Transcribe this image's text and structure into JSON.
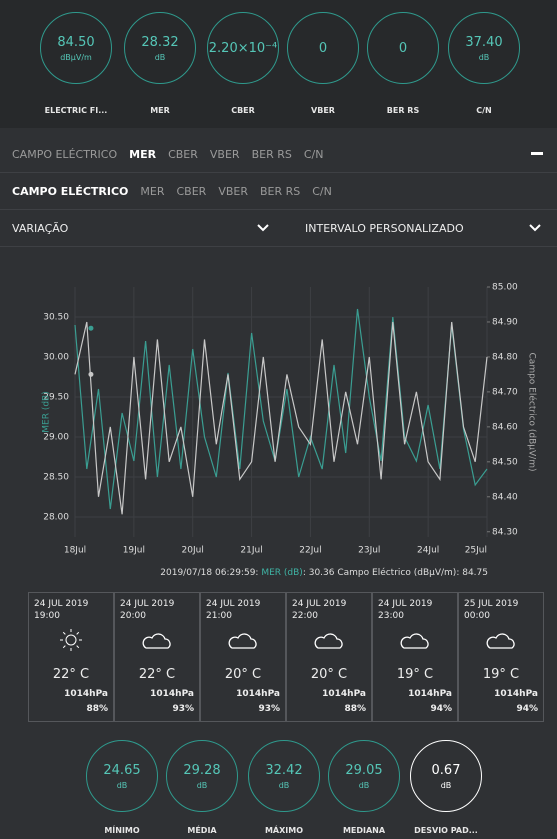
{
  "gauges": [
    {
      "value": "84.50",
      "unit": "dBµV/m",
      "label": "ELECTRIC FI..."
    },
    {
      "value": "28.32",
      "unit": "dB",
      "label": "MER"
    },
    {
      "value": "2.20×10⁻⁴",
      "label": "CBER"
    },
    {
      "value": "0",
      "label": "VBER"
    },
    {
      "value": "0",
      "label": "BER RS"
    },
    {
      "value": "37.40",
      "unit": "dB",
      "label": "C/N"
    }
  ],
  "tabs1": {
    "items": [
      "CAMPO ELÉCTRICO",
      "MER",
      "CBER",
      "VBER",
      "BER RS",
      "C/N"
    ],
    "active": 1
  },
  "tabs2": {
    "items": [
      "CAMPO ELÉCTRICO",
      "MER",
      "CBER",
      "VBER",
      "BER RS",
      "C/N"
    ],
    "active": 0
  },
  "dropdowns": [
    "VARIAÇÃO",
    "INTERVALO PERSONALIZADO"
  ],
  "chart_data": {
    "type": "line",
    "ylabel": "MER (dB)",
    "y2label": "Campo Eléctrico (dBµV/m)",
    "x": [
      18.0,
      18.2,
      18.4,
      18.6,
      18.8,
      19.0,
      19.2,
      19.4,
      19.6,
      19.8,
      20.0,
      20.2,
      20.4,
      20.6,
      20.8,
      21.0,
      21.2,
      21.4,
      21.6,
      21.8,
      22.0,
      22.2,
      22.4,
      22.6,
      22.8,
      23.0,
      23.2,
      23.4,
      23.6,
      23.8,
      24.0,
      24.2,
      24.4,
      24.6,
      24.8,
      25.0
    ],
    "series": [
      {
        "name": "MER (dB)",
        "color": "#3a9e92",
        "values": [
          30.4,
          28.6,
          29.6,
          28.1,
          29.3,
          28.7,
          30.2,
          28.5,
          29.9,
          28.6,
          30.1,
          29.0,
          28.5,
          29.8,
          28.6,
          30.3,
          29.2,
          28.7,
          29.6,
          28.5,
          29.0,
          28.6,
          29.9,
          28.8,
          30.6,
          29.5,
          28.7,
          30.5,
          29.0,
          28.7,
          29.4,
          28.6,
          30.4,
          29.1,
          28.4,
          28.6
        ]
      },
      {
        "name": "Campo Eléctrico (dBµV/m)",
        "color": "#c8c8c8",
        "axis": "y2",
        "values": [
          84.75,
          84.9,
          84.4,
          84.6,
          84.35,
          84.8,
          84.45,
          84.85,
          84.5,
          84.6,
          84.4,
          84.85,
          84.55,
          84.75,
          84.45,
          84.5,
          84.8,
          84.5,
          84.75,
          84.6,
          84.55,
          84.85,
          84.5,
          84.7,
          84.55,
          84.8,
          84.45,
          84.9,
          84.55,
          84.7,
          84.5,
          84.45,
          84.9,
          84.6,
          84.5,
          84.8
        ]
      }
    ],
    "xlim": [
      18,
      25
    ],
    "xticks": [
      {
        "value": 18,
        "label": "18Jul"
      },
      {
        "value": 19,
        "label": "19Jul"
      },
      {
        "value": 20,
        "label": "20Jul"
      },
      {
        "value": 21,
        "label": "21Jul"
      },
      {
        "value": 22,
        "label": "22Jul"
      },
      {
        "value": 23,
        "label": "23Jul"
      },
      {
        "value": 24,
        "label": "24Jul"
      },
      {
        "value": 25,
        "label": "25Jul"
      }
    ],
    "ylim": [
      27.75,
      30.875
    ],
    "yticks": [
      {
        "value": 28,
        "label": "28.00"
      },
      {
        "value": 28.5,
        "label": "28.50"
      },
      {
        "value": 29,
        "label": "29.00"
      },
      {
        "value": 29.5,
        "label": "29.50"
      },
      {
        "value": 30,
        "label": "30.00"
      },
      {
        "value": 30.5,
        "label": "30.50"
      }
    ],
    "y2lim": [
      84.285,
      85.0
    ],
    "y2ticks": [
      {
        "value": 84.3,
        "label": "84.30"
      },
      {
        "value": 84.4,
        "label": "84.40"
      },
      {
        "value": 84.5,
        "label": "84.50"
      },
      {
        "value": 84.6,
        "label": "84.60"
      },
      {
        "value": 84.7,
        "label": "84.70"
      },
      {
        "value": 84.8,
        "label": "84.80"
      },
      {
        "value": 84.9,
        "label": "84.90"
      },
      {
        "value": 85,
        "label": "85.00"
      }
    ],
    "grid": true,
    "annotation": {
      "time": "2019/07/18 06:29:59",
      "mer_value": 30.36,
      "field_value": 84.75
    }
  },
  "weather": [
    {
      "date": "24 JUL 2019",
      "time": "19:00",
      "icon": "sun",
      "temp": "22° C",
      "pressure": "1014hPa",
      "humidity": "88%"
    },
    {
      "date": "24 JUL 2019",
      "time": "20:00",
      "icon": "cloud",
      "temp": "22° C",
      "pressure": "1014hPa",
      "humidity": "93%"
    },
    {
      "date": "24 JUL 2019",
      "time": "21:00",
      "icon": "cloud",
      "temp": "20° C",
      "pressure": "1014hPa",
      "humidity": "93%"
    },
    {
      "date": "24 JUL 2019",
      "time": "22:00",
      "icon": "cloud",
      "temp": "20° C",
      "pressure": "1014hPa",
      "humidity": "88%"
    },
    {
      "date": "24 JUL 2019",
      "time": "23:00",
      "icon": "cloud",
      "temp": "19° C",
      "pressure": "1014hPa",
      "humidity": "94%"
    },
    {
      "date": "25 JUL 2019",
      "time": "00:00",
      "icon": "cloud",
      "temp": "19° C",
      "pressure": "1014hPa",
      "humidity": "94%"
    }
  ],
  "stats": {
    "items": [
      {
        "value": "24.65",
        "unit": "dB",
        "label": "MÍNIMO"
      },
      {
        "value": "29.28",
        "unit": "dB",
        "label": "MÉDIA"
      },
      {
        "value": "32.42",
        "unit": "dB",
        "label": "MÁXIMO"
      },
      {
        "value": "29.05",
        "unit": "dB",
        "label": "MEDIANA"
      },
      {
        "value": "0.67",
        "unit": "dB",
        "label": "DESVIO PAD..."
      }
    ],
    "active": 4
  }
}
